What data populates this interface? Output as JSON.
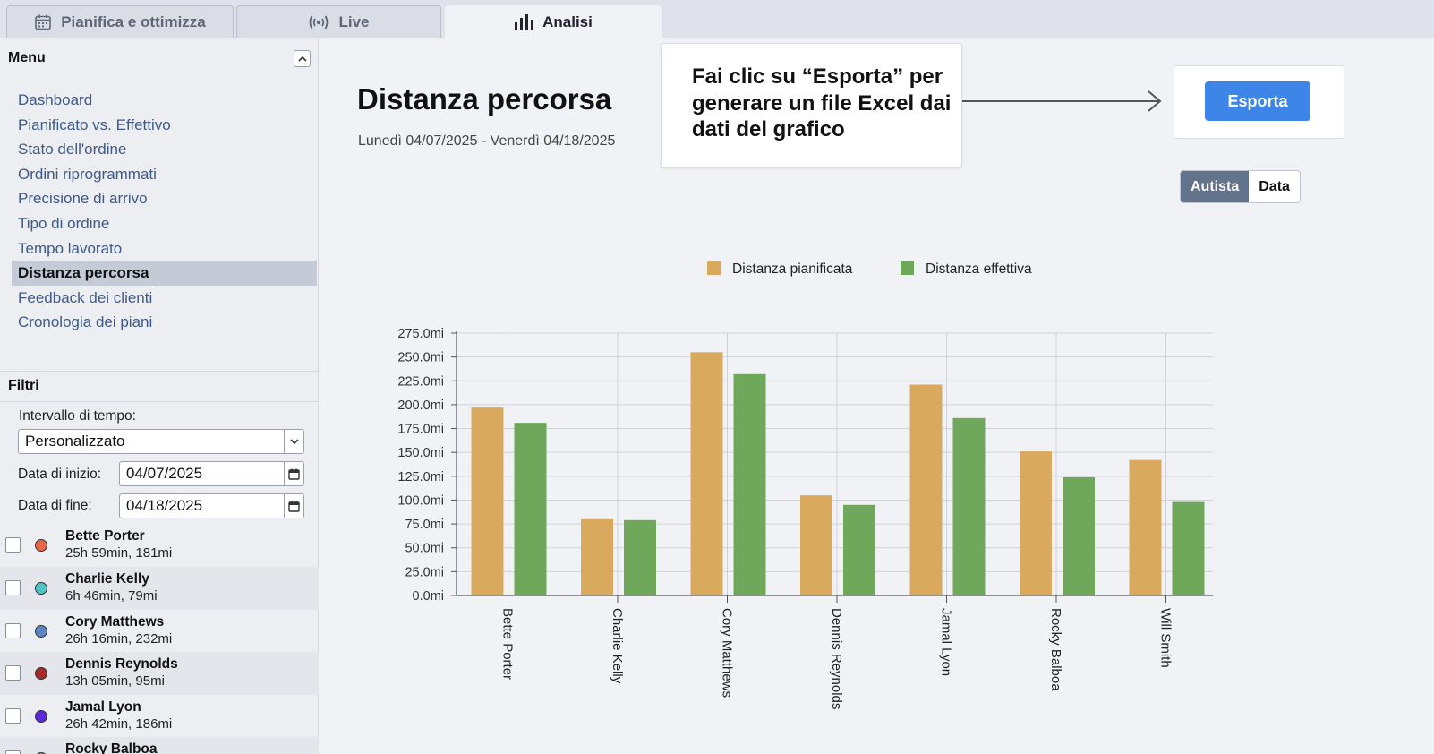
{
  "tabs": [
    {
      "label": "Pianifica e ottimizza",
      "icon": "calendar-icon"
    },
    {
      "label": "Live",
      "icon": "broadcast-icon"
    },
    {
      "label": "Analisi",
      "icon": "bar-chart-icon",
      "active": true
    }
  ],
  "sidebar": {
    "menu_title": "Menu",
    "items": [
      {
        "label": "Dashboard"
      },
      {
        "label": "Pianificato vs. Effettivo"
      },
      {
        "label": "Stato dell'ordine"
      },
      {
        "label": "Ordini riprogrammati"
      },
      {
        "label": "Precisione di arrivo"
      },
      {
        "label": "Tipo di ordine"
      },
      {
        "label": "Tempo lavorato"
      },
      {
        "label": "Distanza percorsa",
        "active": true
      },
      {
        "label": "Feedback dei clienti"
      },
      {
        "label": "Cronologia dei piani"
      }
    ],
    "filters": {
      "title": "Filtri",
      "range_label": "Intervallo di tempo:",
      "range_value": "Personalizzato",
      "start_label": "Data di inizio:",
      "start_value": "04/07/2025",
      "end_label": "Data di fine:",
      "end_value": "04/18/2025"
    },
    "drivers": [
      {
        "name": "Bette Porter",
        "info": "25h 59min, 181mi",
        "color": "#e8674a"
      },
      {
        "name": "Charlie Kelly",
        "info": "6h 46min, 79mi",
        "color": "#52c3c6"
      },
      {
        "name": "Cory Matthews",
        "info": "26h 16min, 232mi",
        "color": "#5c84c4"
      },
      {
        "name": "Dennis Reynolds",
        "info": "13h 05min, 95mi",
        "color": "#a52a2a"
      },
      {
        "name": "Jamal Lyon",
        "info": "26h 42min, 186mi",
        "color": "#5b2bd9"
      },
      {
        "name": "Rocky Balboa",
        "info": "",
        "color": "#888888"
      }
    ]
  },
  "main": {
    "title": "Distanza percorsa",
    "subtitle": "Lunedì 04/07/2025 - Venerdì 04/18/2025",
    "callout": "Fai clic su “Esporta” per generare un file Excel dai dati del grafico",
    "export_label": "Esporta",
    "toggle": [
      "Autista",
      "Data"
    ],
    "toggle_active": "Autista"
  },
  "colors": {
    "planned": "#d9aa5e",
    "actual": "#6fa85a",
    "accent": "#3d86e8"
  },
  "chart_data": {
    "type": "bar",
    "categories": [
      "Bette Porter",
      "Charlie Kelly",
      "Cory Matthews",
      "Dennis Reynolds",
      "Jamal Lyon",
      "Rocky Balboa",
      "Will Smith"
    ],
    "series": [
      {
        "name": "Distanza pianificata",
        "values": [
          197,
          80,
          255,
          105,
          221,
          151,
          142
        ]
      },
      {
        "name": "Distanza effettiva",
        "values": [
          181,
          79,
          232,
          95,
          186,
          124,
          98
        ]
      }
    ],
    "y_ticks": [
      "0.0mi",
      "25.0mi",
      "50.0mi",
      "75.0mi",
      "100.0mi",
      "125.0mi",
      "150.0mi",
      "175.0mi",
      "200.0mi",
      "225.0mi",
      "250.0mi",
      "275.0mi"
    ],
    "ylim": [
      0,
      275
    ],
    "grid": true,
    "legend": "top-center"
  }
}
